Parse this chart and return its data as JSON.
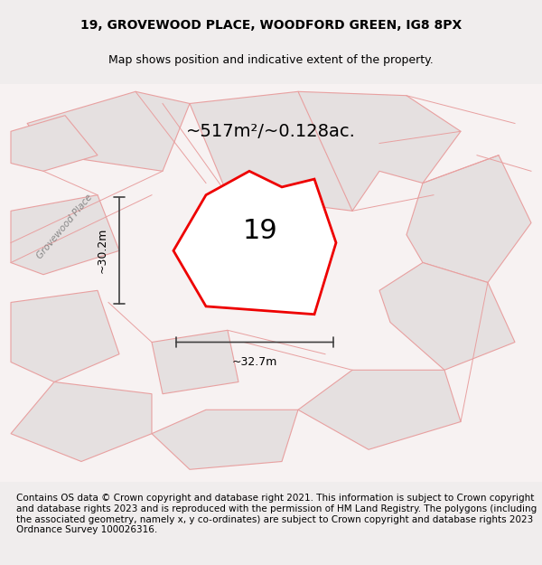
{
  "title_line1": "19, GROVEWOOD PLACE, WOODFORD GREEN, IG8 8PX",
  "title_line2": "Map shows position and indicative extent of the property.",
  "footer_text": "Contains OS data © Crown copyright and database right 2021. This information is subject to Crown copyright and database rights 2023 and is reproduced with the permission of HM Land Registry. The polygons (including the associated geometry, namely x, y co-ordinates) are subject to Crown copyright and database rights 2023 Ordnance Survey 100026316.",
  "area_text": "~517m²/~0.128ac.",
  "label_19": "19",
  "dim_h": "~30.2m",
  "dim_w": "~32.7m",
  "road_label": "Grovewood Place",
  "bg_color": "#f5f0f0",
  "map_bg": "#f8f5f5",
  "parcel_fill": "#e8e4e4",
  "parcel_edge": "#d4b8b8",
  "subject_fill": "#ffffff",
  "subject_edge": "#ee0000",
  "cadastral_color": "#e8a0a0",
  "dim_color": "#404040",
  "title_fontsize": 10,
  "subtitle_fontsize": 9,
  "area_fontsize": 14,
  "label_fontsize": 22,
  "footer_fontsize": 7.5
}
